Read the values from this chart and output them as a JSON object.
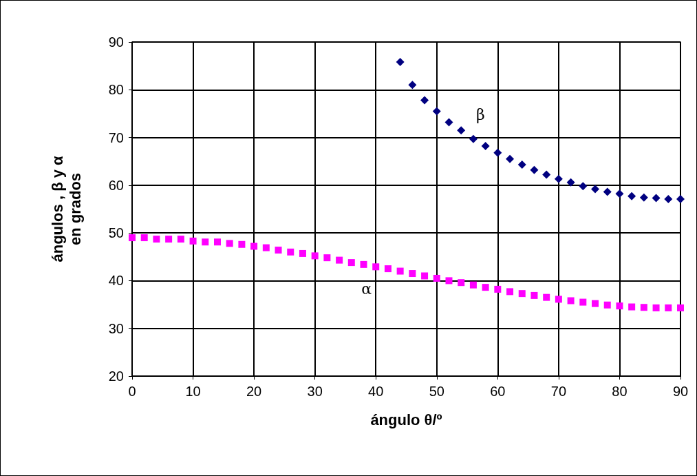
{
  "chart_data": {
    "type": "scatter",
    "xlabel": "ángulo θ/º",
    "ylabel": "ángulos , β y α\nen grados",
    "xlim": [
      0,
      90
    ],
    "xticks": [
      0,
      10,
      20,
      30,
      40,
      50,
      60,
      70,
      80,
      90
    ],
    "ylim": [
      20,
      90
    ],
    "yticks": [
      20,
      30,
      40,
      50,
      60,
      70,
      80,
      90
    ],
    "grid": true,
    "series": [
      {
        "name": "β",
        "color": "#000080",
        "marker": "diamond",
        "x": [
          44,
          46,
          48,
          50,
          52,
          54,
          56,
          58,
          60,
          62,
          64,
          66,
          68,
          70,
          72,
          74,
          76,
          78,
          80,
          82,
          84,
          86,
          88,
          90
        ],
        "values": [
          85.8,
          81.0,
          77.8,
          75.5,
          73.2,
          71.5,
          69.7,
          68.2,
          66.8,
          65.5,
          64.3,
          63.2,
          62.2,
          61.3,
          60.6,
          59.8,
          59.2,
          58.6,
          58.2,
          57.7,
          57.4,
          57.3,
          57.1,
          57.1
        ]
      },
      {
        "name": "α",
        "color": "#ff00ff",
        "marker": "square",
        "x": [
          0,
          2,
          4,
          6,
          8,
          10,
          12,
          14,
          16,
          18,
          20,
          22,
          24,
          26,
          28,
          30,
          32,
          34,
          36,
          38,
          40,
          42,
          44,
          46,
          48,
          50,
          52,
          54,
          56,
          58,
          60,
          62,
          64,
          66,
          68,
          70,
          72,
          74,
          76,
          78,
          80,
          82,
          84,
          86,
          88,
          90
        ],
        "values": [
          49.0,
          49.0,
          48.7,
          48.7,
          48.7,
          48.3,
          48.1,
          48.1,
          47.8,
          47.6,
          47.2,
          46.9,
          46.4,
          46.0,
          45.7,
          45.2,
          44.8,
          44.3,
          43.8,
          43.4,
          42.9,
          42.5,
          42.0,
          41.5,
          41.0,
          40.5,
          40.0,
          39.6,
          39.1,
          38.6,
          38.2,
          37.7,
          37.3,
          36.9,
          36.5,
          36.1,
          35.8,
          35.5,
          35.2,
          34.9,
          34.7,
          34.5,
          34.4,
          34.3,
          34.3,
          34.3
        ]
      }
    ]
  }
}
